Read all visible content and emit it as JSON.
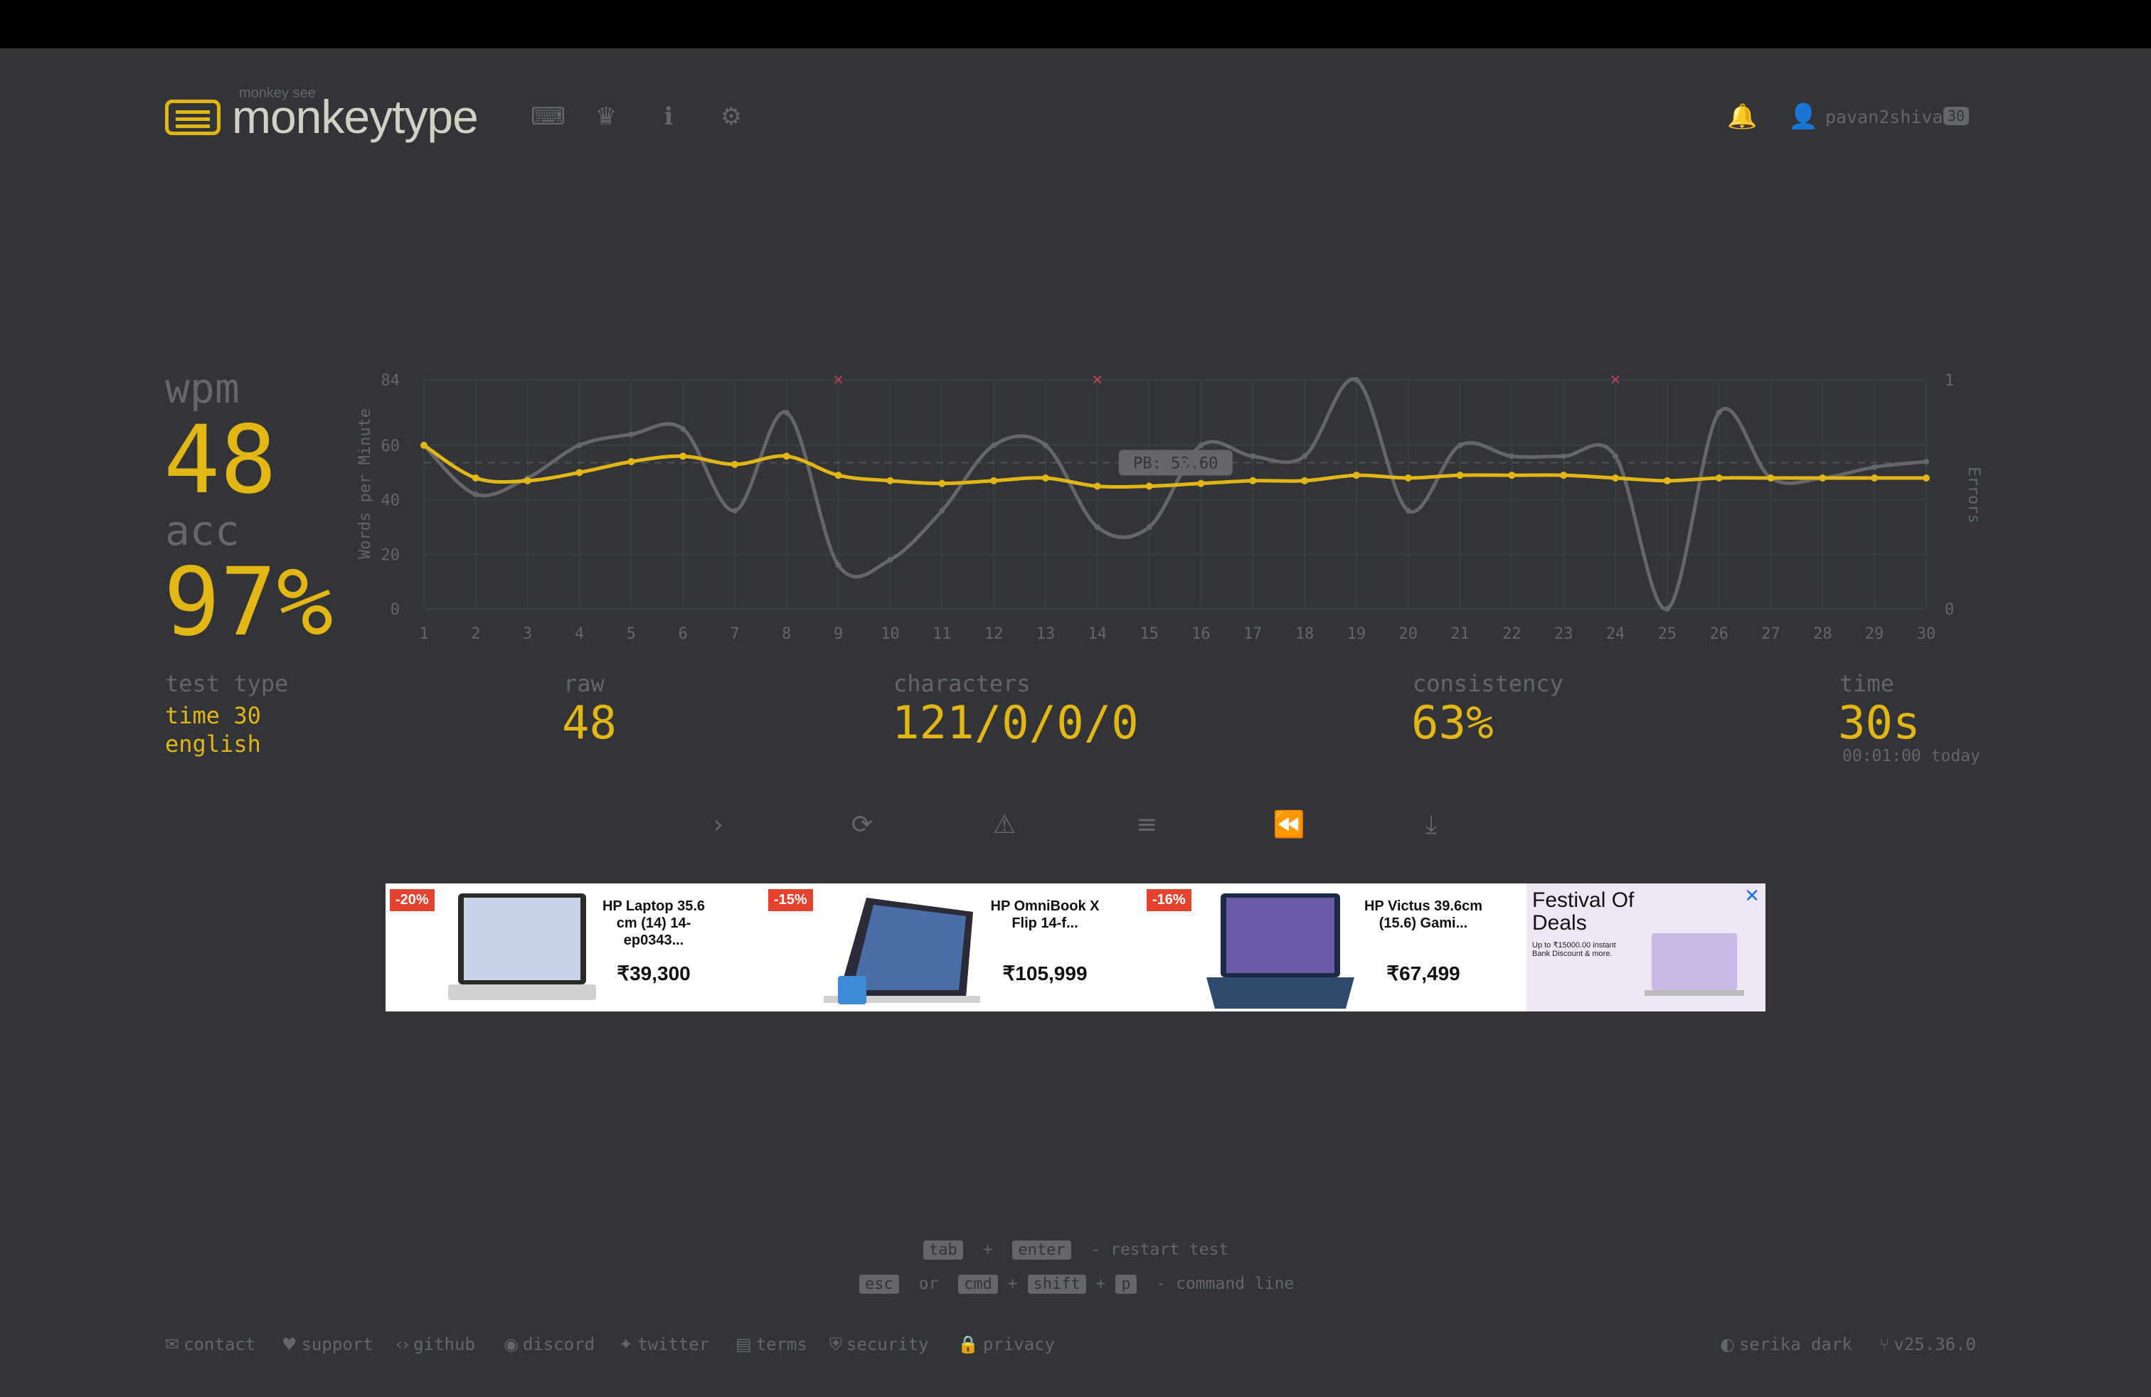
{
  "header": {
    "logo_sub": "monkey see",
    "logo_text": "monkeytype",
    "nav_icons": [
      "keyboard-icon",
      "crown-icon",
      "info-icon",
      "gear-icon"
    ],
    "username": "pavan2shiva",
    "level": "30"
  },
  "result": {
    "wpm_label": "wpm",
    "wpm": "48",
    "acc_label": "acc",
    "acc": "97%",
    "test_type_label": "test type",
    "test_type_mode": "time 30",
    "test_type_lang": "english",
    "raw_label": "raw",
    "raw": "48",
    "characters_label": "characters",
    "characters": "121/0/0/0",
    "consistency_label": "consistency",
    "consistency": "63%",
    "time_label": "time",
    "time": "30s",
    "time_note": "00:01:00 today"
  },
  "chart_data": {
    "type": "line",
    "x": [
      1,
      2,
      3,
      4,
      5,
      6,
      7,
      8,
      9,
      10,
      11,
      12,
      13,
      14,
      15,
      16,
      17,
      18,
      19,
      20,
      21,
      22,
      23,
      24,
      25,
      26,
      27,
      28,
      29,
      30
    ],
    "series": [
      {
        "values": [
          60,
          48,
          47,
          50,
          54,
          56,
          53,
          56,
          49,
          47,
          46,
          47,
          48,
          45,
          45,
          46,
          47,
          47,
          49,
          48,
          49,
          49,
          49,
          48,
          47,
          48,
          48,
          48,
          48,
          48
        ]
      },
      {
        "values": [
          60,
          42,
          48,
          60,
          64,
          66,
          36,
          72,
          16,
          18,
          36,
          60,
          60,
          30,
          30,
          60,
          56,
          56,
          84,
          36,
          60,
          56,
          56,
          56,
          0,
          72,
          48,
          48,
          52,
          54
        ]
      }
    ],
    "errors_x": [
      9,
      14,
      24
    ],
    "pb_label": "PB: 53.60",
    "pb_value": 53.6,
    "ylabel": "Words per Minute",
    "y2label": "Errors",
    "yticks": [
      "84",
      "60",
      "40",
      "20",
      "0"
    ],
    "y2ticks": [
      "1",
      "0"
    ],
    "ylim": [
      0,
      84
    ],
    "y2lim": [
      0,
      1
    ],
    "colors": {
      "wpm": "#e2b714",
      "raw": "#646669",
      "error": "#ca4754",
      "grid": "#3b3e42"
    }
  },
  "actions": [
    "next-test-icon",
    "restart-icon",
    "report-icon",
    "words-history-icon",
    "replay-icon",
    "screenshot-icon"
  ],
  "ad": {
    "items": [
      {
        "badge": "-20%",
        "title": "HP Laptop 35.6 cm (14) 14-ep0343...",
        "price": "₹39,300"
      },
      {
        "badge": "-15%",
        "title": "HP OmniBook X Flip 14-f...",
        "price": "₹105,999"
      },
      {
        "badge": "-16%",
        "title": "HP Victus 39.6cm (15.6) Gami...",
        "price": "₹67,499"
      }
    ],
    "promo_title": "Festival Of Deals",
    "promo_sub": "Up to ₹15000.00 instant Bank Discount & more."
  },
  "hints": {
    "tab": "tab",
    "plus": "+",
    "enter": "enter",
    "restart": "- restart test",
    "esc": "esc",
    "or": "or",
    "cmd": "cmd",
    "shift": "shift",
    "p": "p",
    "command_line": "- command line"
  },
  "footer": {
    "links": [
      "contact",
      "support",
      "github",
      "discord",
      "twitter",
      "terms",
      "security",
      "privacy"
    ],
    "theme": "serika dark",
    "version": "v25.36.0"
  }
}
